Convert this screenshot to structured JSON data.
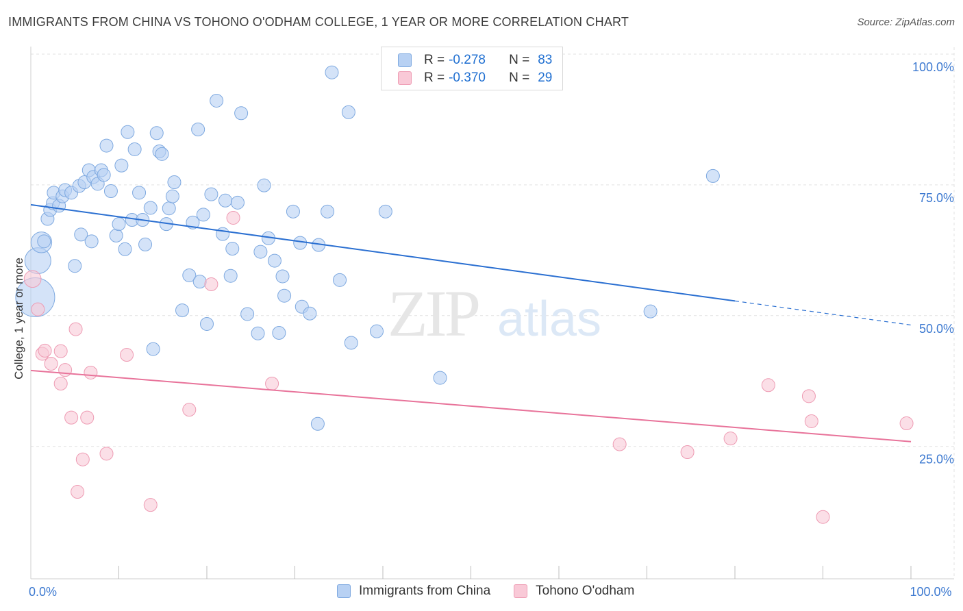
{
  "header": {
    "title": "IMMIGRANTS FROM CHINA VS TOHONO O'ODHAM COLLEGE, 1 YEAR OR MORE CORRELATION CHART",
    "source": "Source: ZipAtlas.com"
  },
  "watermark": {
    "zip": "ZIP",
    "atlas": "atlas"
  },
  "legend": {
    "series1": {
      "r_label": "R =",
      "r_value": "-0.278",
      "n_label": "N =",
      "n_value": "83"
    },
    "series2": {
      "r_label": "R =",
      "r_value": "-0.370",
      "n_label": "N =",
      "n_value": "29"
    }
  },
  "bottom_legend": {
    "series1": "Immigrants from China",
    "series2": "Tohono O'odham"
  },
  "colors": {
    "series1_fill": "#b8d1f3",
    "series1_stroke": "#7ea9e0",
    "series1_line": "#2a6fd1",
    "series2_fill": "#f9c9d7",
    "series2_stroke": "#ee9bb3",
    "series2_line": "#e8739a",
    "axis_tick_label": "#3b78d0",
    "grid": "#e2e2e2"
  },
  "chart_data": {
    "type": "scatter",
    "title": "IMMIGRANTS FROM CHINA VS TOHONO O'ODHAM COLLEGE, 1 YEAR OR MORE CORRELATION CHART",
    "xlabel": "",
    "ylabel": "College, 1 year or more",
    "xlim": [
      0,
      100
    ],
    "ylim": [
      0,
      100
    ],
    "x_tick_labels": [
      {
        "value": 0,
        "label": "0.0%"
      },
      {
        "value": 100,
        "label": "100.0%"
      }
    ],
    "y_tick_labels": [
      {
        "value": 25,
        "label": "25.0%"
      },
      {
        "value": 50,
        "label": "50.0%"
      },
      {
        "value": 75,
        "label": "75.0%"
      },
      {
        "value": 100,
        "label": "100.0%"
      }
    ],
    "grid": true,
    "series": [
      {
        "name": "Immigrants from China",
        "trend": {
          "x0": 0,
          "y0": 71.2,
          "x1": 80,
          "y1": 52.8,
          "dash_to_x": 100,
          "dash_to_y": 48.2
        },
        "points": [
          [
            0.5,
            53.5,
            3
          ],
          [
            0.8,
            60.5,
            2
          ],
          [
            1.2,
            64,
            1.6
          ],
          [
            1.5,
            64.2,
            1
          ],
          [
            1.9,
            68.5,
            1
          ],
          [
            2.2,
            70.2,
            1
          ],
          [
            2.5,
            71.5,
            1
          ],
          [
            2.6,
            73.5,
            1
          ],
          [
            3.2,
            71,
            1
          ],
          [
            3.6,
            72.8,
            1
          ],
          [
            3.9,
            74,
            1
          ],
          [
            4.6,
            73.5,
            1
          ],
          [
            5.0,
            59.5,
            1
          ],
          [
            5.5,
            74.8,
            1
          ],
          [
            5.7,
            65.5,
            1
          ],
          [
            6.1,
            75.5,
            1
          ],
          [
            6.6,
            77.8,
            1
          ],
          [
            6.9,
            64.2,
            1
          ],
          [
            7.1,
            76.5,
            1
          ],
          [
            7.6,
            75.2,
            1
          ],
          [
            8.0,
            77.8,
            1
          ],
          [
            8.3,
            76.9,
            1
          ],
          [
            8.6,
            82.5,
            1
          ],
          [
            9.1,
            73.8,
            1
          ],
          [
            9.7,
            65.3,
            1
          ],
          [
            10.0,
            67.5,
            1
          ],
          [
            10.3,
            78.7,
            1
          ],
          [
            10.7,
            62.7,
            1
          ],
          [
            11.0,
            85.1,
            1
          ],
          [
            11.5,
            68.3,
            1
          ],
          [
            11.8,
            81.8,
            1
          ],
          [
            12.3,
            73.5,
            1
          ],
          [
            12.7,
            68.3,
            1
          ],
          [
            13.0,
            63.6,
            1
          ],
          [
            13.6,
            70.6,
            1
          ],
          [
            13.9,
            43.6,
            1
          ],
          [
            14.3,
            84.9,
            1
          ],
          [
            14.6,
            81.4,
            1
          ],
          [
            14.9,
            80.9,
            1
          ],
          [
            15.4,
            67.5,
            1
          ],
          [
            15.7,
            70.5,
            1
          ],
          [
            16.1,
            72.8,
            1
          ],
          [
            16.3,
            75.5,
            1
          ],
          [
            17.2,
            51,
            1
          ],
          [
            18.0,
            57.7,
            1
          ],
          [
            18.4,
            67.8,
            1
          ],
          [
            19.0,
            85.6,
            1
          ],
          [
            19.2,
            56.5,
            1
          ],
          [
            19.6,
            69.3,
            1
          ],
          [
            20.0,
            48.4,
            1
          ],
          [
            20.5,
            73.2,
            1
          ],
          [
            21.1,
            91.1,
            1
          ],
          [
            21.8,
            65.6,
            1
          ],
          [
            22.1,
            72.0,
            1
          ],
          [
            22.7,
            57.6,
            1
          ],
          [
            22.9,
            62.8,
            1
          ],
          [
            23.5,
            71.6,
            1
          ],
          [
            23.9,
            88.7,
            1
          ],
          [
            24.6,
            50.3,
            1
          ],
          [
            25.8,
            46.6,
            1
          ],
          [
            26.1,
            62.2,
            1
          ],
          [
            26.5,
            74.9,
            1
          ],
          [
            27.0,
            64.8,
            1
          ],
          [
            27.7,
            60.5,
            1
          ],
          [
            28.2,
            46.7,
            1
          ],
          [
            28.6,
            57.5,
            1
          ],
          [
            28.8,
            53.8,
            1
          ],
          [
            29.8,
            69.9,
            1
          ],
          [
            30.6,
            63.9,
            1
          ],
          [
            30.8,
            51.7,
            1
          ],
          [
            31.7,
            50.4,
            1
          ],
          [
            32.6,
            29.3,
            1
          ],
          [
            32.7,
            63.5,
            1
          ],
          [
            33.7,
            69.9,
            1
          ],
          [
            34.2,
            96.5,
            1
          ],
          [
            35.1,
            56.8,
            1
          ],
          [
            36.1,
            88.9,
            1
          ],
          [
            36.4,
            44.8,
            1
          ],
          [
            39.3,
            47.0,
            1
          ],
          [
            40.3,
            69.9,
            1
          ],
          [
            46.5,
            38.1,
            1
          ],
          [
            70.4,
            50.8,
            1
          ],
          [
            77.5,
            76.7,
            1
          ]
        ]
      },
      {
        "name": "Tohono O'odham",
        "trend": {
          "x0": 0,
          "y0": 39.5,
          "x1": 100,
          "y1": 25.9
        },
        "points": [
          [
            0.2,
            57,
            1.3
          ],
          [
            0.8,
            51.2,
            1
          ],
          [
            1.3,
            42.7,
            1
          ],
          [
            1.6,
            43.3,
            1
          ],
          [
            2.3,
            40.8,
            1
          ],
          [
            3.4,
            43.2,
            1
          ],
          [
            3.4,
            37,
            1
          ],
          [
            3.9,
            39.6,
            1
          ],
          [
            4.6,
            30.5,
            1
          ],
          [
            5.1,
            47.4,
            1
          ],
          [
            5.3,
            16.3,
            1
          ],
          [
            5.9,
            22.5,
            1
          ],
          [
            6.4,
            30.5,
            1
          ],
          [
            6.8,
            39.1,
            1
          ],
          [
            8.6,
            23.6,
            1
          ],
          [
            10.9,
            42.5,
            1
          ],
          [
            13.6,
            13.8,
            1
          ],
          [
            18.0,
            32.0,
            1
          ],
          [
            20.5,
            56.0,
            1
          ],
          [
            23.0,
            68.7,
            1
          ],
          [
            27.4,
            37.0,
            1
          ],
          [
            66.9,
            25.4,
            1
          ],
          [
            74.6,
            23.9,
            1
          ],
          [
            79.5,
            26.5,
            1
          ],
          [
            83.8,
            36.7,
            1
          ],
          [
            88.4,
            34.6,
            1
          ],
          [
            88.7,
            29.8,
            1
          ],
          [
            90.0,
            11.5,
            1
          ],
          [
            99.5,
            29.4,
            1
          ]
        ]
      }
    ]
  }
}
